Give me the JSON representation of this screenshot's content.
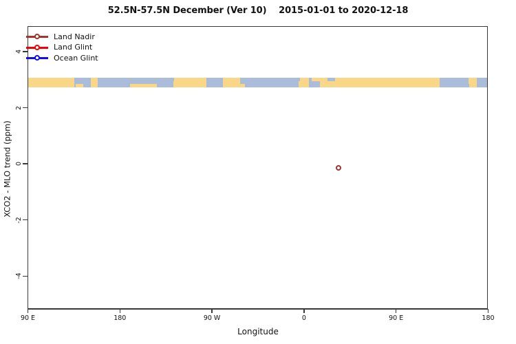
{
  "title": "52.5N-57.5N December (Ver 10)    2015-01-01 to 2020-12-18",
  "axes": {
    "xlabel": "Longitude",
    "ylabel": "XCO2 - MLO trend (ppm)"
  },
  "legend": {
    "items": [
      {
        "label": "Land Nadir",
        "color": "#A5342C"
      },
      {
        "label": "Land Glint",
        "color": "#F50000"
      },
      {
        "label": "Ocean Glint",
        "color": "#0D0DF0"
      }
    ]
  },
  "chart_data": {
    "type": "scatter",
    "title": "52.5N-57.5N December (Ver 10)  2015-01-01 to 2020-12-18",
    "latitude_band": "52.5N-57.5N",
    "month": "December",
    "version": "Ver 10",
    "date_range": "2015-01-01 to 2020-12-18",
    "xlabel": "Longitude",
    "ylabel": "XCO2 - MLO trend (ppm)",
    "xlim_deg_east": [
      90,
      540
    ],
    "ylim": [
      -5.17,
      4.91
    ],
    "x_tick_values": [
      90,
      180,
      270,
      360,
      450,
      540
    ],
    "x_tick_labels": [
      "90 E",
      "180",
      "90 W",
      "0",
      "90 E",
      "180"
    ],
    "y_tick_values": [
      4,
      2,
      0,
      -2,
      -4
    ],
    "y_tick_labels": [
      "4",
      "2",
      "0",
      "-2",
      "-4"
    ],
    "grid": false,
    "legend_position": "top-left",
    "series": [
      {
        "name": "Land Nadir",
        "color": "#A5342C",
        "points": [
          {
            "lon_deg_east": 394,
            "lon_label": "34E",
            "value_ppm": -0.15
          }
        ]
      },
      {
        "name": "Land Glint",
        "color": "#F50000",
        "points": []
      },
      {
        "name": "Ocean Glint",
        "color": "#0D0DF0",
        "points": []
      }
    ],
    "map_strip": {
      "description": "world coastline band drawn across plot",
      "y_center_ppm": 2.9,
      "y_half_height_ppm": 0.17,
      "land_color": "#FAD787",
      "ocean_color": "#A9BDDB",
      "segments": [
        {
          "region": "siberia",
          "type": "land",
          "from": 0.0,
          "to": 0.1
        },
        {
          "region": "sea-of-okhotsk",
          "type": "ocean",
          "from": 0.1,
          "to": 0.137
        },
        {
          "region": "kamchatka",
          "type": "land",
          "from": 0.137,
          "to": 0.152
        },
        {
          "region": "north-pacific",
          "type": "ocean",
          "from": 0.152,
          "to": 0.316
        },
        {
          "region": "western-canada",
          "type": "land",
          "from": 0.316,
          "to": 0.389
        },
        {
          "region": "hudson-bay",
          "type": "ocean",
          "from": 0.389,
          "to": 0.424
        },
        {
          "region": "eastern-canada",
          "type": "land",
          "from": 0.424,
          "to": 0.462
        },
        {
          "region": "north-atlantic",
          "type": "ocean",
          "from": 0.462,
          "to": 0.589
        },
        {
          "region": "british-isles",
          "type": "land",
          "from": 0.589,
          "to": 0.612
        },
        {
          "region": "north-sea",
          "type": "ocean",
          "from": 0.612,
          "to": 0.635
        },
        {
          "region": "europe-russia",
          "type": "land",
          "from": 0.635,
          "to": 0.896
        },
        {
          "region": "sea-of-okhotsk-2",
          "type": "ocean",
          "from": 0.896,
          "to": 0.96
        },
        {
          "region": "kamchatka-2",
          "type": "land",
          "from": 0.96,
          "to": 0.978
        },
        {
          "region": "bering-sea",
          "type": "ocean",
          "from": 0.978,
          "to": 1.0
        }
      ],
      "detail_patches": [
        {
          "type": "land",
          "from": 0.104,
          "to": 0.12,
          "align": "bottom"
        },
        {
          "type": "ocean",
          "from": 0.128,
          "to": 0.137,
          "align": "top"
        },
        {
          "type": "land",
          "from": 0.222,
          "to": 0.281,
          "align": "bottom"
        },
        {
          "type": "ocean",
          "from": 0.31,
          "to": 0.318,
          "align": "top"
        },
        {
          "type": "land",
          "from": 0.46,
          "to": 0.472,
          "align": "bottom"
        },
        {
          "type": "ocean",
          "from": 0.583,
          "to": 0.592,
          "align": "top"
        },
        {
          "type": "land",
          "from": 0.618,
          "to": 0.642,
          "align": "top"
        },
        {
          "type": "ocean",
          "from": 0.652,
          "to": 0.668,
          "align": "top"
        },
        {
          "type": "ocean",
          "from": 0.952,
          "to": 0.961,
          "align": "bottom"
        }
      ]
    }
  }
}
